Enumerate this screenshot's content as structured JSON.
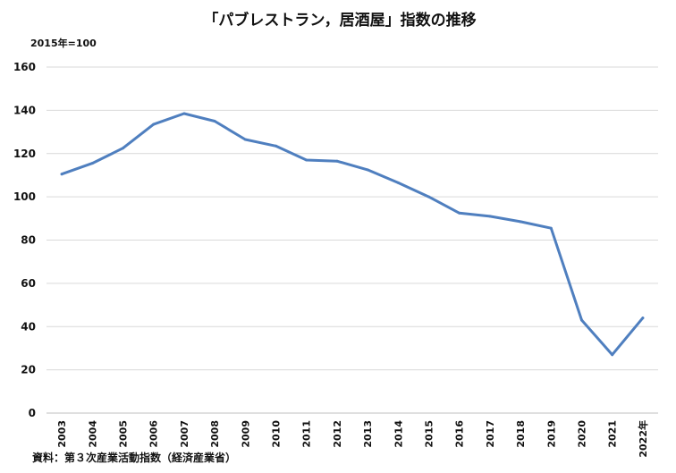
{
  "chart_data": {
    "type": "line",
    "title": "「パブレストラン，居酒屋」指数の推移",
    "unit_label": "2015年=100",
    "source": "資料：第３次産業活動指数（経済産業省）",
    "x": [
      "2003",
      "2004",
      "2005",
      "2006",
      "2007",
      "2008",
      "2009",
      "2010",
      "2011",
      "2012",
      "2013",
      "2014",
      "2015",
      "2016",
      "2017",
      "2018",
      "2019",
      "2020",
      "2021",
      "2022年"
    ],
    "series": [
      {
        "values": [
          110.5,
          115.5,
          122.5,
          133.5,
          138.5,
          135.0,
          126.5,
          123.5,
          117.0,
          116.5,
          112.5,
          106.5,
          100.0,
          92.5,
          91.0,
          88.5,
          85.5,
          43.0,
          27.0,
          44.0
        ],
        "color": "#4f7fbf"
      }
    ],
    "yticks": [
      0,
      20,
      40,
      60,
      80,
      100,
      120,
      140,
      160
    ],
    "ylim": [
      0,
      160
    ],
    "grid": true,
    "legend": "none"
  }
}
